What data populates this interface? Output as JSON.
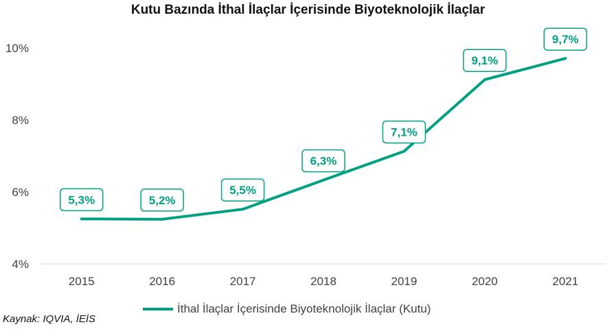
{
  "chart_data": {
    "type": "line",
    "title": "Kutu Bazında İthal İlaçlar İçerisinde Biyoteknolojik İlaçlar",
    "categories": [
      "2015",
      "2016",
      "2017",
      "2018",
      "2019",
      "2020",
      "2021"
    ],
    "series": [
      {
        "name": "İthal İlaçlar İçerisinde Biyoteknolojik İlaçlar (Kutu)",
        "values": [
          5.25,
          5.24,
          5.52,
          6.33,
          7.13,
          9.12,
          9.71
        ],
        "labels": [
          "5,3%",
          "5,2%",
          "5,5%",
          "6,3%",
          "7,1%",
          "9,1%",
          "9,7%"
        ]
      }
    ],
    "ylim": [
      4,
      10
    ],
    "yticks": [
      4,
      6,
      8,
      10
    ],
    "ytick_labels": [
      "4%",
      "6%",
      "8%",
      "10%"
    ],
    "xlabel": "",
    "ylabel": "",
    "grid": false,
    "legend": "bottom",
    "colors": {
      "line": "#00A082",
      "label_text": "#00A082",
      "axis": "#d9d9d9"
    }
  },
  "source_note": "Kaynak: IQVIA, İEİS"
}
